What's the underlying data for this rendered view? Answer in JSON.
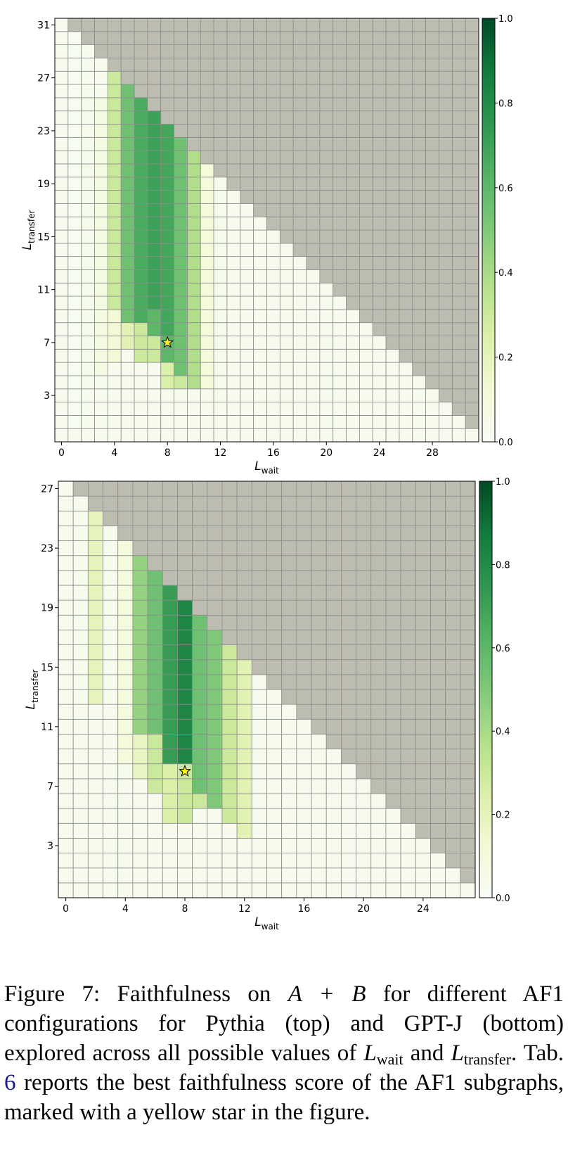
{
  "colors": {
    "invalid": "#bdbcb0",
    "grid_line": "#8c8c8c",
    "star": "#ffef1a",
    "colormap": "Greens"
  },
  "chart_data": [
    {
      "type": "heatmap",
      "name": "Pythia",
      "n": 32,
      "xlabel_main": "L",
      "xlabel_sub": "wait",
      "ylabel_main": "L",
      "ylabel_sub": "transfer",
      "xticks": [
        0,
        4,
        8,
        12,
        16,
        20,
        24,
        28
      ],
      "yticks": [
        3,
        7,
        11,
        15,
        19,
        23,
        27,
        31
      ],
      "colorbar": {
        "range": [
          0,
          1
        ],
        "ticks": [
          "0.0",
          "0.2",
          "0.4",
          "0.6",
          "0.8",
          "1.0"
        ]
      },
      "star": {
        "wait": 8,
        "transfer": 7
      },
      "invalid_rule": "wait + transfer > 31",
      "default_value": 0.03,
      "columns": [
        {
          "wait": 1,
          "from": 1,
          "to": 30,
          "value": 0.02
        },
        {
          "wait": 2,
          "from": 4,
          "to": 26,
          "value": 0.05
        },
        {
          "wait": 3,
          "from": 5,
          "to": 25,
          "value": 0.08
        },
        {
          "wait": 4,
          "from": 10,
          "to": 27,
          "value": 0.3
        },
        {
          "wait": 4,
          "from": 6,
          "to": 9,
          "value": 0.12
        },
        {
          "wait": 5,
          "from": 9,
          "to": 26,
          "value": 0.55
        },
        {
          "wait": 5,
          "from": 7,
          "to": 8,
          "value": 0.22
        },
        {
          "wait": 6,
          "from": 9,
          "to": 25,
          "value": 0.66
        },
        {
          "wait": 6,
          "from": 6,
          "to": 8,
          "value": 0.3
        },
        {
          "wait": 7,
          "from": 10,
          "to": 24,
          "value": 0.7
        },
        {
          "wait": 7,
          "from": 8,
          "to": 9,
          "value": 0.6
        },
        {
          "wait": 7,
          "from": 6,
          "to": 7,
          "value": 0.3
        },
        {
          "wait": 8,
          "from": 8,
          "to": 23,
          "value": 0.68
        },
        {
          "wait": 8,
          "from": 6,
          "to": 7,
          "value": 0.6
        },
        {
          "wait": 8,
          "from": 4,
          "to": 5,
          "value": 0.25
        },
        {
          "wait": 9,
          "from": 5,
          "to": 22,
          "value": 0.55
        },
        {
          "wait": 9,
          "from": 4,
          "to": 4,
          "value": 0.3
        },
        {
          "wait": 10,
          "from": 4,
          "to": 21,
          "value": 0.38
        },
        {
          "wait": 11,
          "from": 4,
          "to": 20,
          "value": 0.1
        },
        {
          "wait": 12,
          "from": 3,
          "to": 19,
          "value": 0.05
        }
      ]
    },
    {
      "type": "heatmap",
      "name": "GPT-J",
      "n": 28,
      "xlabel_main": "L",
      "xlabel_sub": "wait",
      "ylabel_main": "L",
      "ylabel_sub": "transfer",
      "xticks": [
        0,
        4,
        8,
        12,
        16,
        20,
        24
      ],
      "yticks": [
        3,
        7,
        11,
        15,
        19,
        23,
        27
      ],
      "colorbar": {
        "range": [
          0,
          1
        ],
        "ticks": [
          "0.0",
          "0.2",
          "0.4",
          "0.6",
          "0.8",
          "1.0"
        ]
      },
      "star": {
        "wait": 8,
        "transfer": 8
      },
      "invalid_rule": "wait + transfer > 27",
      "default_value": 0.03,
      "columns": [
        {
          "wait": 2,
          "from": 13,
          "to": 25,
          "value": 0.2
        },
        {
          "wait": 4,
          "from": 9,
          "to": 23,
          "value": 0.1
        },
        {
          "wait": 5,
          "from": 11,
          "to": 22,
          "value": 0.45
        },
        {
          "wait": 5,
          "from": 8,
          "to": 10,
          "value": 0.18
        },
        {
          "wait": 6,
          "from": 11,
          "to": 21,
          "value": 0.55
        },
        {
          "wait": 6,
          "from": 7,
          "to": 10,
          "value": 0.3
        },
        {
          "wait": 7,
          "from": 9,
          "to": 20,
          "value": 0.72
        },
        {
          "wait": 7,
          "from": 5,
          "to": 8,
          "value": 0.25
        },
        {
          "wait": 8,
          "from": 9,
          "to": 19,
          "value": 0.82
        },
        {
          "wait": 8,
          "from": 5,
          "to": 8,
          "value": 0.3
        },
        {
          "wait": 9,
          "from": 7,
          "to": 18,
          "value": 0.55
        },
        {
          "wait": 9,
          "from": 6,
          "to": 6,
          "value": 0.3
        },
        {
          "wait": 10,
          "from": 6,
          "to": 17,
          "value": 0.5
        },
        {
          "wait": 11,
          "from": 5,
          "to": 16,
          "value": 0.3
        },
        {
          "wait": 12,
          "from": 4,
          "to": 15,
          "value": 0.22
        }
      ]
    }
  ],
  "caption": {
    "label": "Figure 7:",
    "t1": "Faithfulness on",
    "expr": "A + B",
    "t2": "for different AF1 configurations for Pythia (top) and GPT-J (bottom) explored across all possible values of",
    "lw_main": "L",
    "lw_sub": "wait",
    "and": "and",
    "lt_main": "L",
    "lt_sub": "transfer",
    "t3": ". Tab.",
    "ref": "6",
    "t4": "reports the best faithfulness score of the AF1 subgraphs, marked with a yellow star in the figure."
  }
}
